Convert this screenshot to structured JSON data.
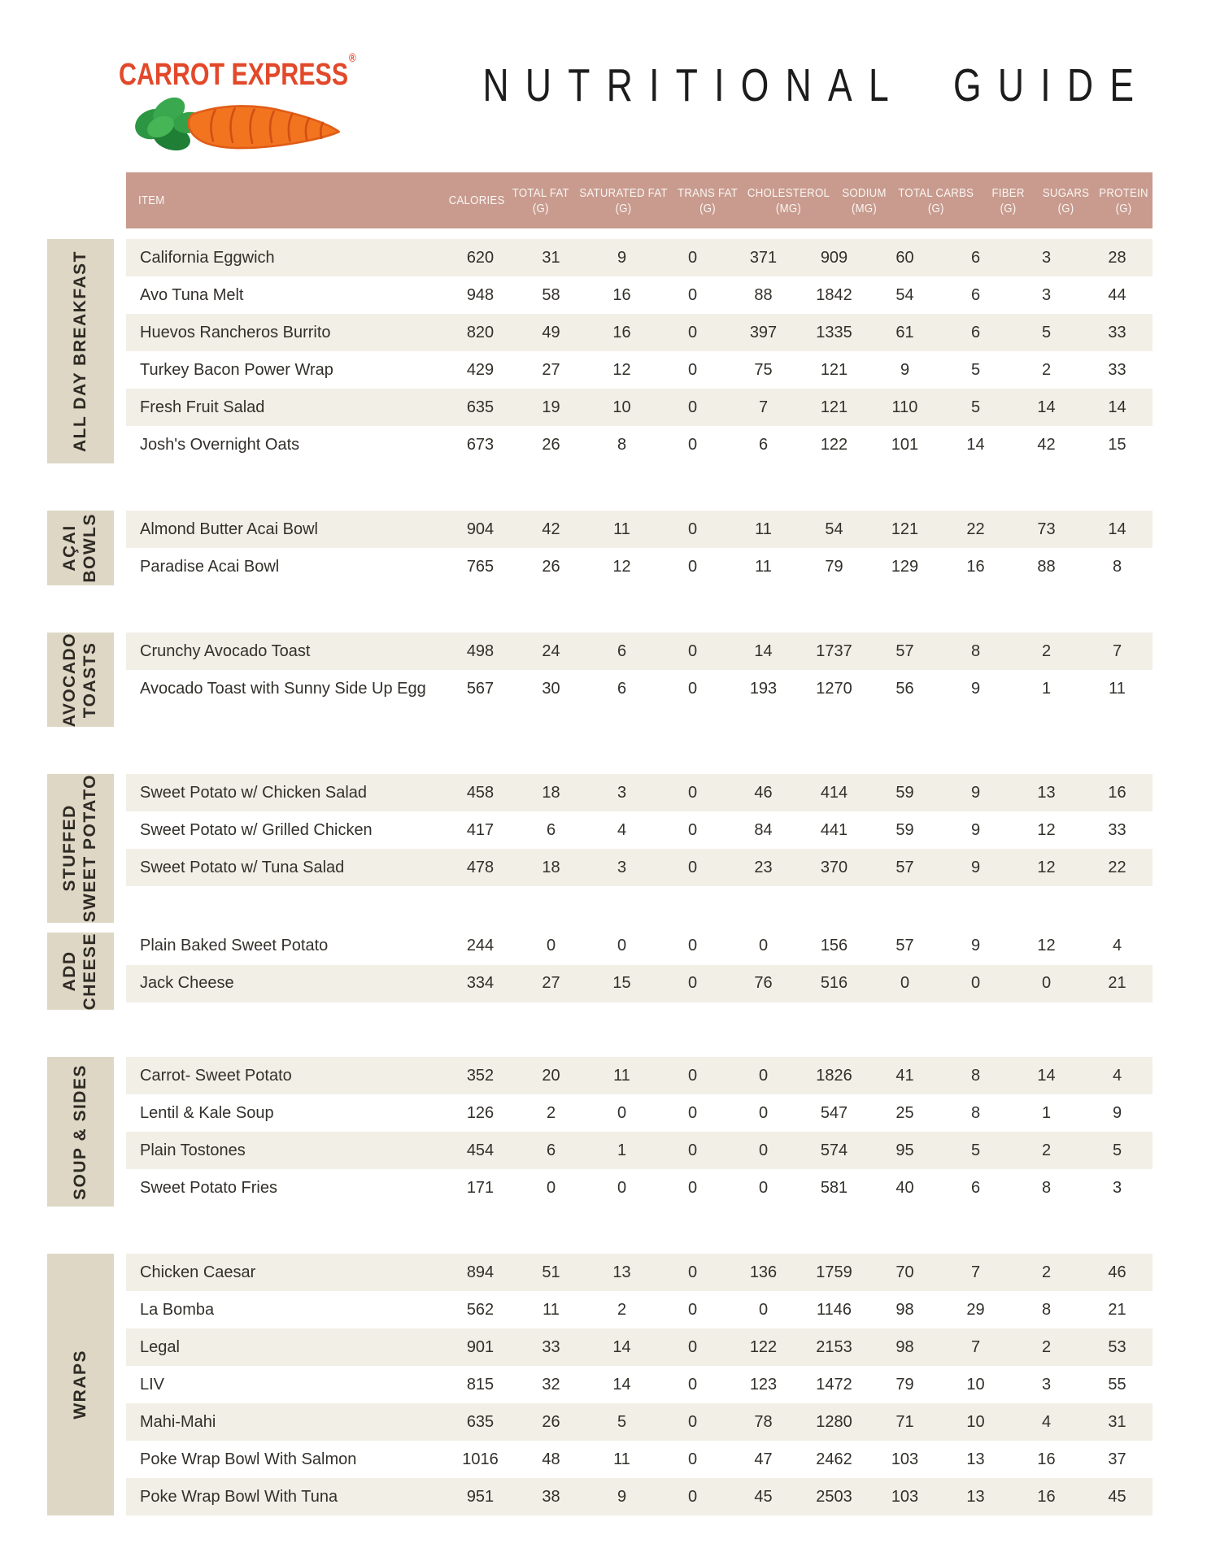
{
  "brand": {
    "logo_text": "CARROT EXPRESS",
    "registered": "®"
  },
  "title": "NUTRITIONAL GUIDE",
  "colors": {
    "header_bg": "#c89b8e",
    "label_bg": "#ded7c5",
    "row_bg": "#f2efe6",
    "logo_red": "#e2482a",
    "carrot_orange": "#f2741f",
    "carrot_outline": "#e05c17",
    "leaf_green": "#2f9e41",
    "title_color": "#1c1c1c",
    "header_text": "#fbf6f3",
    "text_color": "#33302b"
  },
  "table": {
    "columns": [
      {
        "label": "ITEM",
        "unit": ""
      },
      {
        "label": "CALORIES",
        "unit": ""
      },
      {
        "label": "TOTAL FAT",
        "unit": "(G)"
      },
      {
        "label": "SATURATED FAT",
        "unit": "(G)"
      },
      {
        "label": "TRANS FAT",
        "unit": "(G)"
      },
      {
        "label": "CHOLESTEROL",
        "unit": "(MG)"
      },
      {
        "label": "SODIUM",
        "unit": "(MG)"
      },
      {
        "label": "TOTAL CARBS",
        "unit": "(G)"
      },
      {
        "label": "FIBER",
        "unit": "(G)"
      },
      {
        "label": "SUGARS",
        "unit": "(G)"
      },
      {
        "label": "PROTEIN",
        "unit": "(G)"
      }
    ],
    "sections": [
      {
        "label": "ALL DAY BREAKFAST",
        "rows": [
          {
            "item": "California Eggwich",
            "values": [
              620,
              31,
              9,
              0,
              371,
              909,
              60,
              6,
              3,
              28
            ]
          },
          {
            "item": "Avo Tuna Melt",
            "values": [
              948,
              58,
              16,
              0,
              88,
              1842,
              54,
              6,
              3,
              44
            ]
          },
          {
            "item": "Huevos Rancheros Burrito",
            "values": [
              820,
              49,
              16,
              0,
              397,
              1335,
              61,
              6,
              5,
              33
            ]
          },
          {
            "item": "Turkey Bacon Power Wrap",
            "values": [
              429,
              27,
              12,
              0,
              75,
              121,
              9,
              5,
              2,
              33
            ]
          },
          {
            "item": "Fresh Fruit Salad",
            "values": [
              635,
              19,
              10,
              0,
              7,
              121,
              110,
              5,
              14,
              14
            ]
          },
          {
            "item": "Josh's Overnight Oats",
            "values": [
              673,
              26,
              8,
              0,
              6,
              122,
              101,
              14,
              42,
              15
            ]
          }
        ]
      },
      {
        "label": "AÇAI\nBOWLS",
        "rows": [
          {
            "item": "Almond Butter Acai Bowl",
            "values": [
              904,
              42,
              11,
              0,
              11,
              54,
              121,
              22,
              73,
              14
            ]
          },
          {
            "item": "Paradise Acai Bowl",
            "values": [
              765,
              26,
              12,
              0,
              11,
              79,
              129,
              16,
              88,
              8
            ]
          }
        ]
      },
      {
        "label": "AVOCADO\nTOASTS",
        "rows": [
          {
            "item": "Crunchy Avocado Toast",
            "values": [
              498,
              24,
              6,
              0,
              14,
              1737,
              57,
              8,
              2,
              7
            ]
          },
          {
            "item": "Avocado Toast with Sunny Side Up Egg",
            "values": [
              567,
              30,
              6,
              0,
              193,
              1270,
              56,
              9,
              1,
              11
            ]
          }
        ]
      },
      {
        "label": "STUFFED\nSWEET POTATO",
        "rows": [
          {
            "item": "Sweet Potato w/ Chicken Salad",
            "values": [
              458,
              18,
              3,
              0,
              46,
              414,
              59,
              9,
              13,
              16
            ]
          },
          {
            "item": "Sweet Potato w/ Grilled Chicken",
            "values": [
              417,
              6,
              4,
              0,
              84,
              441,
              59,
              9,
              12,
              33
            ]
          },
          {
            "item": "Sweet Potato w/ Tuna Salad",
            "values": [
              478,
              18,
              3,
              0,
              23,
              370,
              57,
              9,
              12,
              22
            ]
          }
        ]
      },
      {
        "label": "ADD\nCHEESE",
        "attached": true,
        "rows": [
          {
            "item": "Plain Baked Sweet Potato",
            "values": [
              244,
              0,
              0,
              0,
              0,
              156,
              57,
              9,
              12,
              4
            ]
          },
          {
            "item": "Jack Cheese",
            "values": [
              334,
              27,
              15,
              0,
              76,
              516,
              0,
              0,
              0,
              21
            ]
          }
        ]
      },
      {
        "label": "SOUP & SIDES",
        "rows": [
          {
            "item": "Carrot- Sweet Potato",
            "values": [
              352,
              20,
              11,
              0,
              0,
              1826,
              41,
              8,
              14,
              4
            ]
          },
          {
            "item": "Lentil & Kale Soup",
            "values": [
              126,
              2,
              0,
              0,
              0,
              547,
              25,
              8,
              1,
              9
            ]
          },
          {
            "item": "Plain Tostones",
            "values": [
              454,
              6,
              1,
              0,
              0,
              574,
              95,
              5,
              2,
              5
            ]
          },
          {
            "item": "Sweet Potato Fries",
            "values": [
              171,
              0,
              0,
              0,
              0,
              581,
              40,
              6,
              8,
              3
            ]
          }
        ]
      },
      {
        "label": "WRAPS",
        "rows": [
          {
            "item": "Chicken Caesar",
            "values": [
              894,
              51,
              13,
              0,
              136,
              1759,
              70,
              7,
              2,
              46
            ]
          },
          {
            "item": "La Bomba",
            "values": [
              562,
              11,
              2,
              0,
              0,
              1146,
              98,
              29,
              8,
              21
            ]
          },
          {
            "item": "Legal",
            "values": [
              901,
              33,
              14,
              0,
              122,
              2153,
              98,
              7,
              2,
              53
            ]
          },
          {
            "item": "LIV",
            "values": [
              815,
              32,
              14,
              0,
              123,
              1472,
              79,
              10,
              3,
              55
            ]
          },
          {
            "item": "Mahi-Mahi",
            "values": [
              635,
              26,
              5,
              0,
              78,
              1280,
              71,
              10,
              4,
              31
            ]
          },
          {
            "item": "Poke Wrap Bowl With Salmon",
            "values": [
              1016,
              48,
              11,
              0,
              47,
              2462,
              103,
              13,
              16,
              37
            ]
          },
          {
            "item": "Poke Wrap Bowl With Tuna",
            "values": [
              951,
              38,
              9,
              0,
              45,
              2503,
              103,
              13,
              16,
              45
            ]
          }
        ]
      }
    ]
  }
}
